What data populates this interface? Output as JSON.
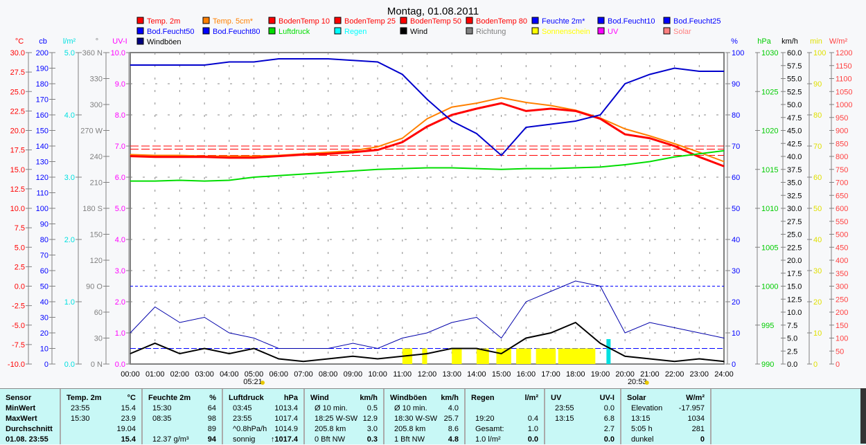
{
  "title": "Montag, 01.08.2011",
  "legend": [
    {
      "label": "Temp. 2m",
      "color": "#ff0000"
    },
    {
      "label": "Temp. 5cm*",
      "color": "#ff8000"
    },
    {
      "label": "BodenTemp 10",
      "color": "#ff0000"
    },
    {
      "label": "BodenTemp 25",
      "color": "#ff0000"
    },
    {
      "label": "BodenTemp 50",
      "color": "#ff0000"
    },
    {
      "label": "BodenTemp 80",
      "color": "#ff0000"
    },
    {
      "label": "Feuchte 2m*",
      "color": "#0000ff"
    },
    {
      "label": "Bod.Feucht10",
      "color": "#0000ff"
    },
    {
      "label": "Bod.Feucht25",
      "color": "#0000ff"
    },
    {
      "label": "Bod.Feucht50",
      "color": "#0000ff"
    },
    {
      "label": "Bod.Feucht80",
      "color": "#0000ff"
    },
    {
      "label": "Luftdruck",
      "color": "#00dd00"
    },
    {
      "label": "Regen",
      "color": "#00ffff"
    },
    {
      "label": "Wind",
      "color": "#000000"
    },
    {
      "label": "Richtung",
      "color": "#808080"
    },
    {
      "label": "Sonnenschein",
      "color": "#ffff00"
    },
    {
      "label": "UV",
      "color": "#ff00ff"
    },
    {
      "label": "Solar",
      "color": "#ff8080"
    },
    {
      "label": "Windböen",
      "color": "#000080"
    }
  ],
  "chart_data": {
    "type": "line",
    "title": "Montag, 01.08.2011",
    "x_hours": [
      0,
      1,
      2,
      3,
      4,
      5,
      6,
      7,
      8,
      9,
      10,
      11,
      12,
      13,
      14,
      15,
      16,
      17,
      18,
      19,
      20,
      21,
      22,
      23,
      24
    ],
    "x_ticks": [
      "00:00",
      "01:00",
      "02:00",
      "03:00",
      "04:00",
      "05:00",
      "06:00",
      "07:00",
      "08:00",
      "09:00",
      "10:00",
      "11:00",
      "12:00",
      "13:00",
      "14:00",
      "15:00",
      "16:00",
      "17:00",
      "18:00",
      "19:00",
      "20:00",
      "21:00",
      "22:00",
      "23:00",
      "24:00"
    ],
    "sunrise": "05:21",
    "sunset": "20:53",
    "axes": {
      "left": [
        {
          "unit": "°C",
          "color": "#ff0000",
          "min": -10,
          "max": 30,
          "step": 2.5,
          "dec": 1
        },
        {
          "unit": "cb",
          "color": "#0000ff",
          "min": 0,
          "max": 200,
          "step": 10,
          "dec": 0
        },
        {
          "unit": "l/m²",
          "color": "#00e0e0",
          "min": 0,
          "max": 5,
          "step": 1,
          "dec": 1
        },
        {
          "unit": "°",
          "color": "#808080",
          "min": 0,
          "max": 360,
          "step": 30,
          "dec": 0
        },
        {
          "unit": "UV-I",
          "color": "#ff00ff",
          "min": 0,
          "max": 10,
          "step": 1,
          "dec": 1
        }
      ],
      "right": [
        {
          "unit": "%",
          "color": "#0000ff",
          "min": 0,
          "max": 100,
          "step": 10,
          "dec": 0
        },
        {
          "unit": "hPa",
          "color": "#00cc00",
          "min": 990,
          "max": 1030,
          "step": 5,
          "dec": 0
        },
        {
          "unit": "km/h",
          "color": "#000000",
          "min": 0,
          "max": 60,
          "step": 2.5,
          "dec": 1
        },
        {
          "unit": "min",
          "color": "#e0e000",
          "min": 0,
          "max": 100,
          "step": 10,
          "dec": 0
        },
        {
          "unit": "W/m²",
          "color": "#ff4040",
          "min": 0,
          "max": 1200,
          "step": 50,
          "dec": 0
        }
      ]
    },
    "compass": {
      "0": "N",
      "90": "O",
      "180": "S",
      "270": "W",
      "360": "N"
    },
    "series": [
      {
        "name": "Temp. 5cm*",
        "axis": "°C",
        "color": "#ff8000",
        "values": [
          16.9,
          16.8,
          16.8,
          16.7,
          16.7,
          16.7,
          16.8,
          17,
          17.2,
          17.4,
          17.9,
          19,
          21.5,
          23,
          23.5,
          24.2,
          23.6,
          23.2,
          22.6,
          21.6,
          20.2,
          19.3,
          18.3,
          17.2,
          16
        ]
      },
      {
        "name": "Temp. 2m",
        "axis": "°C",
        "color": "#ff0000",
        "values": [
          16.7,
          16.6,
          16.6,
          16.6,
          16.5,
          16.5,
          16.7,
          16.9,
          17,
          17.2,
          17.5,
          18.5,
          20.5,
          22,
          22.8,
          23.5,
          22.5,
          22.8,
          22.5,
          21.5,
          19.5,
          19,
          18,
          16.6,
          15.4
        ]
      },
      {
        "name": "Feuchte 2m*",
        "axis": "%",
        "color": "#0000cc",
        "values": [
          96,
          96,
          96,
          96,
          97,
          97,
          98,
          98,
          98,
          97.5,
          97,
          93,
          85,
          78,
          74,
          67,
          76,
          77,
          78,
          80,
          90,
          93,
          95,
          94,
          94
        ]
      },
      {
        "name": "Luftdruck",
        "axis": "hPa",
        "color": "#00dd00",
        "values": [
          1013.5,
          1013.5,
          1013.6,
          1013.5,
          1013.6,
          1014,
          1014.2,
          1014.4,
          1014.6,
          1014.8,
          1015,
          1015.1,
          1015.2,
          1015.2,
          1015.1,
          1015,
          1015.1,
          1015.1,
          1015.2,
          1015.3,
          1015.6,
          1016,
          1016.6,
          1017,
          1017.4
        ]
      },
      {
        "name": "Windböen",
        "axis": "km/h",
        "color": "#0000aa",
        "values": [
          6,
          11,
          8,
          9,
          6,
          5,
          3,
          3,
          3,
          4,
          3,
          5,
          6,
          8,
          9,
          5,
          12,
          14,
          16,
          15,
          6,
          8,
          7,
          6,
          5
        ]
      },
      {
        "name": "Wind",
        "axis": "km/h",
        "color": "#000000",
        "values": [
          2,
          4,
          2,
          3,
          2,
          3,
          1,
          0.5,
          1,
          1.5,
          1,
          1.5,
          2,
          3,
          3,
          2,
          5,
          6,
          8,
          4,
          1.5,
          1,
          0.5,
          1,
          0.5
        ]
      }
    ],
    "sunshine_hours": [
      [
        11,
        11.4
      ],
      [
        11.8,
        12
      ],
      [
        13,
        13.4
      ],
      [
        14,
        14.5
      ],
      [
        14.8,
        15.4
      ],
      [
        15.6,
        16.2
      ],
      [
        16.4,
        17.2
      ],
      [
        17.3,
        18.8
      ]
    ],
    "rain": {
      "time": "19:20",
      "value": 0.4
    }
  },
  "table": {
    "columns": [
      {
        "head": "Sensor",
        "unit": "",
        "rows": [
          [
            "MinWert",
            ""
          ],
          [
            "MaxWert",
            ""
          ],
          [
            "Durchschnitt",
            ""
          ],
          [
            "01.08. 23:55",
            ""
          ]
        ]
      },
      {
        "head": "Temp. 2m",
        "unit": "°C",
        "rows": [
          [
            "23:55",
            "15.4"
          ],
          [
            "15:30",
            "23.9"
          ],
          [
            "",
            "19.04"
          ],
          [
            "",
            "15.4"
          ]
        ]
      },
      {
        "head": "Feuchte 2m",
        "unit": "%",
        "rows": [
          [
            "15:30",
            "64"
          ],
          [
            "08:35",
            "98"
          ],
          [
            "",
            "89"
          ],
          [
            "12.37 g/m³",
            "94"
          ]
        ]
      },
      {
        "head": "Luftdruck",
        "unit": "hPa",
        "rows": [
          [
            "03:45",
            "1013.4"
          ],
          [
            "23:55",
            "1017.4"
          ],
          [
            "^0.8hPa/h",
            "1014.9"
          ],
          [
            "sonnig",
            "↑1017.4"
          ]
        ]
      },
      {
        "head": "Wind",
        "unit": "km/h",
        "rows": [
          [
            "Ø 10 min.",
            "0.5"
          ],
          [
            "18:25  W-SW",
            "12.9"
          ],
          [
            "205.8 km",
            "3.0"
          ],
          [
            "0 Bft NW",
            "0.3"
          ]
        ]
      },
      {
        "head": "Windböen",
        "unit": "km/h",
        "rows": [
          [
            "Ø 10 min.",
            "4.0"
          ],
          [
            "18:30  W-SW",
            "25.7"
          ],
          [
            "205.8 km",
            "8.6"
          ],
          [
            "1 Bft NW",
            "4.8"
          ]
        ]
      },
      {
        "head": "Regen",
        "unit": "l/m²",
        "rows": [
          [
            "",
            ""
          ],
          [
            "19:20",
            "0.4"
          ],
          [
            "Gesamt:",
            "1.0"
          ],
          [
            "1.0 l/m²",
            "0.0"
          ]
        ]
      },
      {
        "head": "UV",
        "unit": "UV-I",
        "rows": [
          [
            "23:55",
            "0.0"
          ],
          [
            "13:15",
            "6.8"
          ],
          [
            "",
            "2.7"
          ],
          [
            "",
            "0.0"
          ]
        ]
      },
      {
        "head": "Solar",
        "unit": "W/m²",
        "rows": [
          [
            "Elevation",
            "-17.957"
          ],
          [
            "13:15",
            "1034"
          ],
          [
            "5:05 h",
            "281"
          ],
          [
            "dunkel",
            "0"
          ]
        ]
      }
    ]
  }
}
